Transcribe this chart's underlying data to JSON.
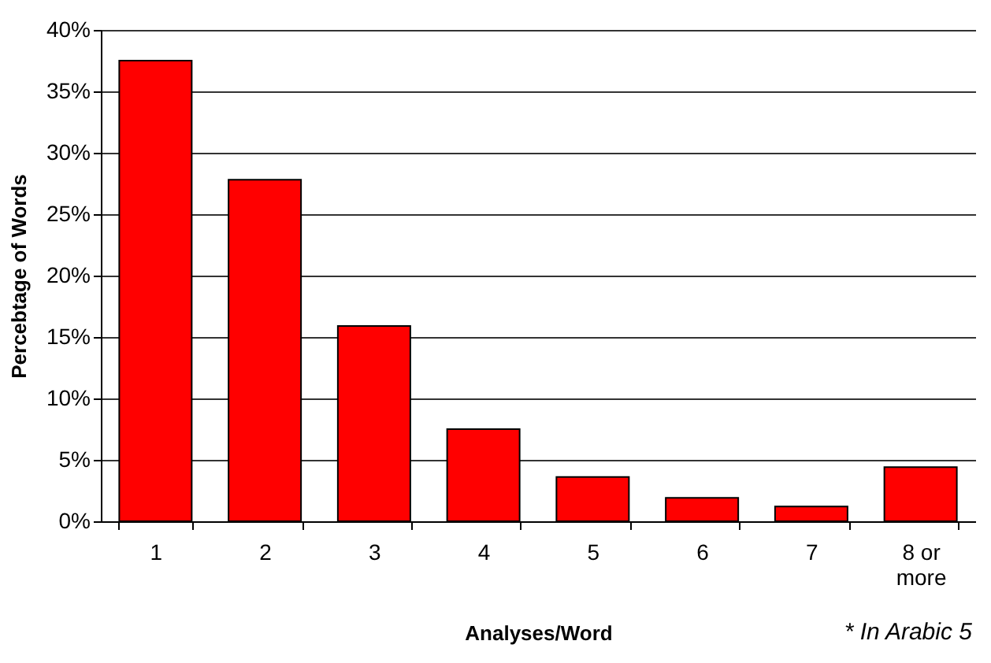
{
  "chart_data": {
    "type": "bar",
    "xlabel": "Analyses/Word",
    "ylabel": "Percebtage of Words",
    "categories": [
      "1",
      "2",
      "3",
      "4",
      "5",
      "6",
      "7",
      "8 or\nmore"
    ],
    "values": [
      37.5,
      27.8,
      15.9,
      7.5,
      3.6,
      1.9,
      1.2,
      4.4
    ],
    "color": "#ff0000",
    "ylim": [
      0,
      40
    ],
    "yticks": [
      {
        "value": 0,
        "label": "0%"
      },
      {
        "value": 5,
        "label": "5%"
      },
      {
        "value": 10,
        "label": "10%"
      },
      {
        "value": 15,
        "label": "15%"
      },
      {
        "value": 20,
        "label": "20%"
      },
      {
        "value": 25,
        "label": "25%"
      },
      {
        "value": 30,
        "label": "30%"
      },
      {
        "value": 35,
        "label": "35%"
      },
      {
        "value": 40,
        "label": "40%"
      }
    ],
    "grid": "y",
    "annotations": [
      "* In Arabic 5"
    ]
  }
}
